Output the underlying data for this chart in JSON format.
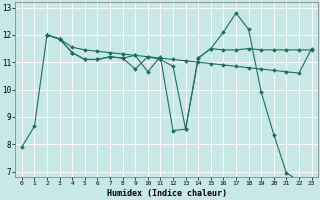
{
  "xlabel": "Humidex (Indice chaleur)",
  "bg_color": "#c8e8e8",
  "grid_color": "#ffffff",
  "line_color": "#1a7060",
  "xlim": [
    -0.5,
    23.5
  ],
  "ylim": [
    6.8,
    13.2
  ],
  "xticks": [
    0,
    1,
    2,
    3,
    4,
    5,
    6,
    7,
    8,
    9,
    10,
    11,
    12,
    13,
    14,
    15,
    16,
    17,
    18,
    19,
    20,
    21,
    22,
    23
  ],
  "yticks": [
    7,
    8,
    9,
    10,
    11,
    12,
    13
  ],
  "series": [
    {
      "x": [
        0,
        1,
        2,
        3,
        4,
        5,
        6,
        7,
        8,
        9,
        10,
        11,
        12,
        13,
        14,
        15,
        16,
        17,
        18,
        19,
        20,
        21,
        22,
        23
      ],
      "y": [
        7.9,
        8.65,
        12.0,
        11.85,
        11.35,
        11.1,
        11.1,
        11.2,
        11.15,
        11.25,
        10.65,
        11.2,
        8.5,
        8.55,
        11.15,
        11.5,
        12.1,
        12.8,
        12.2,
        9.9,
        8.35,
        6.95,
        6.65,
        6.5
      ]
    },
    {
      "x": [
        2,
        3,
        4,
        5,
        6,
        7,
        8,
        9,
        10,
        11,
        12,
        13,
        14,
        15,
        16,
        17,
        18,
        19,
        20,
        21,
        22,
        23
      ],
      "y": [
        12.0,
        11.85,
        11.55,
        11.45,
        11.4,
        11.35,
        11.3,
        11.25,
        11.2,
        11.15,
        11.1,
        11.05,
        11.0,
        10.95,
        10.9,
        10.85,
        10.8,
        10.75,
        10.7,
        10.65,
        10.6,
        11.5
      ]
    },
    {
      "x": [
        2,
        3,
        4,
        5,
        6,
        7,
        8,
        9,
        10,
        11,
        12,
        13,
        14,
        15,
        16,
        17,
        18,
        19,
        20,
        21,
        22,
        23
      ],
      "y": [
        12.0,
        11.85,
        11.35,
        11.1,
        11.1,
        11.2,
        11.15,
        10.75,
        11.2,
        11.1,
        10.85,
        8.55,
        11.15,
        11.5,
        11.45,
        11.45,
        11.5,
        11.45,
        11.45,
        11.45,
        11.45,
        11.45
      ]
    }
  ]
}
